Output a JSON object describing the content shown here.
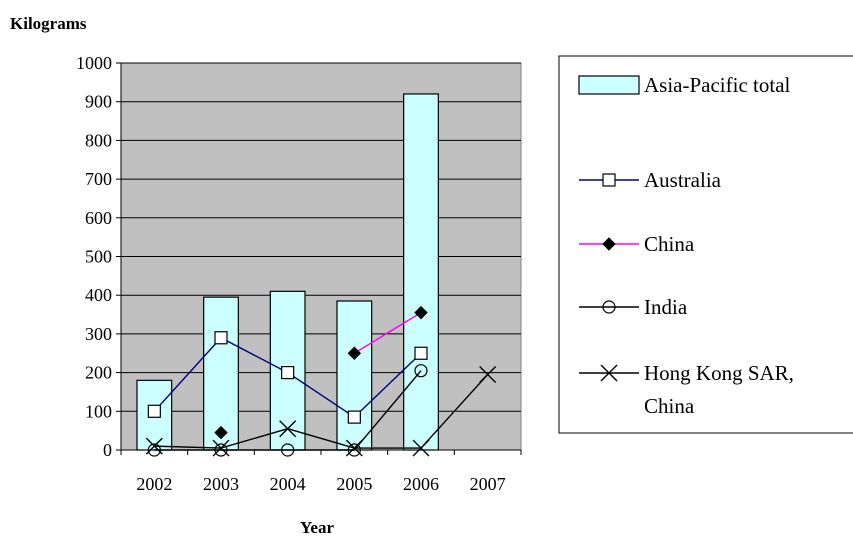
{
  "chart_data": {
    "type": "bar",
    "ylabel": "Kilograms",
    "xlabel": "Year",
    "categories": [
      "2002",
      "2003",
      "2004",
      "2005",
      "2006",
      "2007"
    ],
    "ylim": [
      0,
      1000
    ],
    "yticks": [
      0,
      100,
      200,
      300,
      400,
      500,
      600,
      700,
      800,
      900,
      1000
    ],
    "grid": true,
    "legend_position": "right",
    "plot_background": "#c0c0c0",
    "series": [
      {
        "name": "Asia-Pacific total",
        "kind": "bar",
        "marker": "box",
        "color": "#ccffff",
        "stroke": "#000000",
        "values": [
          180,
          395,
          410,
          385,
          920,
          null
        ]
      },
      {
        "name": "Australia",
        "kind": "line",
        "marker": "square",
        "color": "#000080",
        "values": [
          100,
          290,
          200,
          85,
          250,
          null
        ]
      },
      {
        "name": "China",
        "kind": "line",
        "marker": "diamond",
        "color": "#ff00ff",
        "values": [
          null,
          45,
          null,
          250,
          355,
          null
        ]
      },
      {
        "name": "India",
        "kind": "line",
        "marker": "circle",
        "color": "#000000",
        "values": [
          0,
          0,
          0,
          0,
          205,
          null
        ]
      },
      {
        "name": "Hong Kong SAR, China",
        "legend_lines": [
          "Hong Kong SAR,",
          "China"
        ],
        "kind": "line",
        "marker": "x",
        "color": "#000000",
        "values": [
          10,
          5,
          55,
          5,
          5,
          195
        ]
      }
    ]
  }
}
